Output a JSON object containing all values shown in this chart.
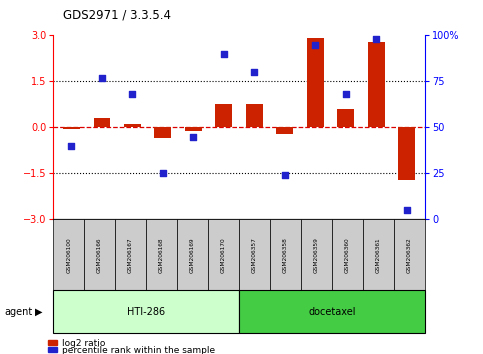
{
  "title": "GDS2971/ 3.3.5.4",
  "title_full": "GDS2971 / 3.3.5.4",
  "samples": [
    "GSM206100",
    "GSM206166",
    "GSM206167",
    "GSM206168",
    "GSM206169",
    "GSM206170",
    "GSM206357",
    "GSM206358",
    "GSM206359",
    "GSM206360",
    "GSM206361",
    "GSM206362"
  ],
  "log2_ratio": [
    -0.05,
    0.3,
    0.1,
    -0.35,
    -0.12,
    0.75,
    0.75,
    -0.22,
    2.9,
    0.6,
    2.8,
    -1.7
  ],
  "percentile_rank": [
    40,
    77,
    68,
    25,
    45,
    90,
    80,
    24,
    95,
    68,
    98,
    5
  ],
  "bar_color": "#cc2200",
  "dot_color": "#2222cc",
  "bg_color": "#ffffff",
  "ylim": [
    -3,
    3
  ],
  "y2lim": [
    0,
    100
  ],
  "yticks": [
    -3,
    -1.5,
    0,
    1.5,
    3
  ],
  "y2ticks": [
    0,
    25,
    50,
    75,
    100
  ],
  "group1_label": "HTI-286",
  "group2_label": "docetaxel",
  "group1_color": "#ccffcc",
  "group2_color": "#44cc44",
  "group1_count": 6,
  "group2_count": 6,
  "agent_label": "agent",
  "legend_bar_label": "log2 ratio",
  "legend_dot_label": "percentile rank within the sample"
}
